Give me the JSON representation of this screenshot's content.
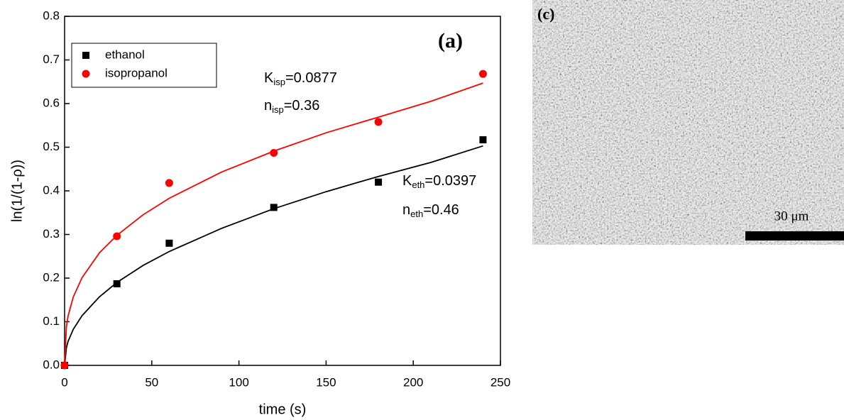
{
  "chart_data": {
    "type": "scatter",
    "xlabel": "time (s)",
    "ylabel": "ln(1/(1-ρ))",
    "xlim": [
      0,
      250
    ],
    "xticks": [
      0,
      50,
      100,
      150,
      200,
      250
    ],
    "ylim": [
      0,
      0.8
    ],
    "yticks": [
      {
        "value": 0,
        "label": "0.0"
      },
      {
        "value": 0.1,
        "label": "0.1"
      },
      {
        "value": 0.2,
        "label": "0.2"
      },
      {
        "value": 0.3,
        "label": "0.3"
      },
      {
        "value": 0.4,
        "label": "0.4"
      },
      {
        "value": 0.5,
        "label": "0.5"
      },
      {
        "value": 0.6,
        "label": "0.6"
      },
      {
        "value": 0.7,
        "label": "0.7"
      },
      {
        "value": 0.8,
        "label": "0.8"
      }
    ],
    "series": [
      {
        "name": "ethanol",
        "color": "#000000",
        "marker": "square",
        "x": [
          0,
          30,
          60,
          120,
          180,
          240
        ],
        "values": [
          0,
          0.187,
          0.28,
          0.362,
          0.42,
          0.517
        ]
      },
      {
        "name": "isopropanol",
        "color": "#ff0000",
        "marker": "circle",
        "x": [
          0,
          30,
          60,
          120,
          180,
          240
        ],
        "values": [
          0,
          0.296,
          0.418,
          0.487,
          0.558,
          0.668
        ]
      }
    ],
    "fits": [
      {
        "color": "#000000",
        "x": [
          0,
          1,
          2,
          5,
          10,
          20,
          30,
          45,
          60,
          90,
          120,
          150,
          180,
          210,
          240
        ],
        "values": [
          0,
          0.04,
          0.055,
          0.083,
          0.114,
          0.157,
          0.19,
          0.229,
          0.261,
          0.314,
          0.359,
          0.398,
          0.433,
          0.465,
          0.503
        ]
      },
      {
        "color": "#ff0000",
        "x": [
          0,
          1,
          2,
          5,
          10,
          20,
          30,
          45,
          60,
          90,
          120,
          150,
          180,
          210,
          240
        ],
        "values": [
          0,
          0.088,
          0.113,
          0.157,
          0.201,
          0.258,
          0.298,
          0.345,
          0.383,
          0.443,
          0.491,
          0.533,
          0.569,
          0.605,
          0.647
        ]
      }
    ],
    "panel_label": "(a)",
    "annotations": [
      {
        "main": "K",
        "sub": "isp",
        "rest": "=0.0877"
      },
      {
        "main": "n",
        "sub": "isp",
        "rest": "=0.36"
      },
      {
        "main": "K",
        "sub": "eth",
        "rest": "=0.0397"
      },
      {
        "main": "n",
        "sub": "eth",
        "rest": "=0.46"
      }
    ],
    "legend": "upper left"
  },
  "image": {
    "panel_label": "(c)",
    "scale_bar": "30 μm"
  }
}
